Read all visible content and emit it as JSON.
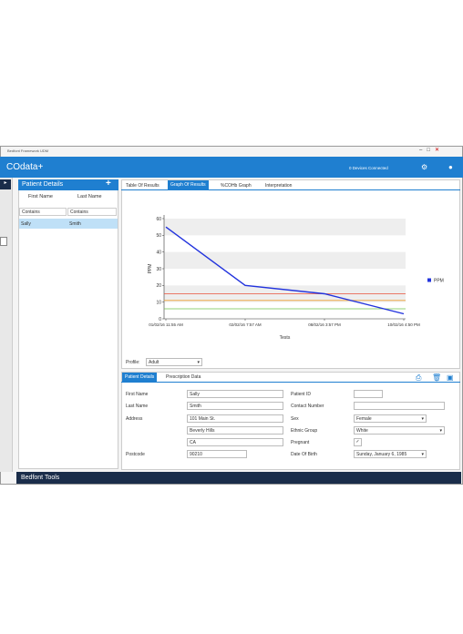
{
  "window": {
    "title": "Bedfont Framework UDM"
  },
  "header": {
    "app": "COdata+",
    "status": "0 Devices Connected"
  },
  "sidebar": {
    "title": "Patient Details",
    "columns": [
      "First Name",
      "Last Name"
    ],
    "filters": [
      "Contains",
      "Contains"
    ],
    "rows": [
      [
        "Sally",
        "Smith"
      ]
    ]
  },
  "tabs": [
    "Table Of Results",
    "Graph Of Results",
    "%COHb Graph",
    "Interpretation"
  ],
  "chart_data": {
    "type": "line",
    "x_label": "Tests",
    "y_label": "PPM",
    "categories": [
      "01/02/16 11:55 AM",
      "02/02/16 7:57 AM",
      "08/02/16 3:57 PM",
      "10/02/16 4:50 PM"
    ],
    "series": [
      {
        "name": "PPM",
        "color": "#2233dd",
        "values": [
          55,
          20,
          15,
          3
        ]
      }
    ],
    "reference_lines": [
      {
        "value": 15,
        "color": "#e8503a"
      },
      {
        "value": 11,
        "color": "#f0a030"
      },
      {
        "value": 6,
        "color": "#6cc04a"
      }
    ],
    "ylim": [
      0,
      60
    ],
    "yticks": [
      0,
      10,
      20,
      30,
      40,
      50,
      60
    ],
    "legend": "right"
  },
  "profile": {
    "label": "Profile:",
    "value": "Adult"
  },
  "patient_tabs": [
    "Patient Details",
    "Prescription Data"
  ],
  "form": {
    "left": [
      {
        "label": "First Name",
        "value": "Sally"
      },
      {
        "label": "Last Name",
        "value": "Smith"
      },
      {
        "label": "Address",
        "value": "101 Main St."
      },
      {
        "value": "Beverly Hills"
      },
      {
        "value": "CA"
      },
      {
        "label": "Postcode",
        "value": "90210"
      }
    ],
    "right": [
      {
        "label": "Patient ID",
        "value": ""
      },
      {
        "label": "Contact Number",
        "value": ""
      },
      {
        "label": "Sex",
        "value": "Female"
      },
      {
        "label": "Ethnic Group",
        "value": "White"
      },
      {
        "label": "Pregnant"
      },
      {
        "label": "Date Of Birth",
        "value": "Sunday, January 6, 1985"
      }
    ]
  },
  "footer": {
    "title": "Bedfont Tools"
  }
}
